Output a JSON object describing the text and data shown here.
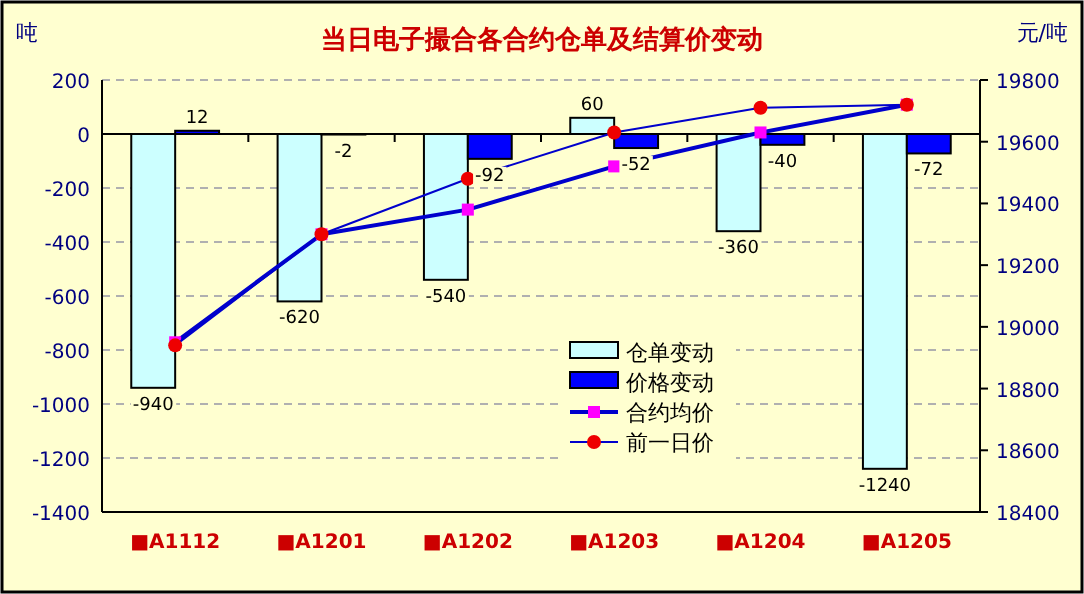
{
  "chart_data": {
    "type": "bar",
    "title": "当日电子撮合各合约仓单及结算价变动",
    "ylabel": "吨",
    "y2label": "元/吨",
    "categories": [
      "■A1112",
      "■A1201",
      "■A1202",
      "■A1203",
      "■A1204",
      "■A1205"
    ],
    "series": [
      {
        "name": "仓单变动",
        "color": "#ccffff",
        "values": [
          -940,
          -620,
          -540,
          60,
          -360,
          -1240
        ],
        "value_labels": [
          "-940",
          "-620",
          "-540",
          "60",
          "-360",
          "-1240"
        ]
      },
      {
        "name": "价格变动",
        "color": "#0000ff",
        "values": [
          12,
          -2,
          -92,
          -52,
          -40,
          -72
        ],
        "value_labels": [
          "12",
          "-2",
          "-92",
          "-52",
          "-40",
          "-72"
        ]
      },
      {
        "name": "合约均价",
        "type": "line",
        "axis": "y2",
        "color": "#0000cc",
        "marker": "square",
        "values": [
          18950,
          19300,
          19380,
          19520,
          19630,
          19720
        ]
      },
      {
        "name": "前一日价",
        "type": "line",
        "axis": "y2",
        "color": "#0000cc",
        "marker": "circle",
        "values": [
          18940,
          19300,
          19480,
          19630,
          19710,
          19720
        ]
      }
    ],
    "ylim": [
      -1400,
      200
    ],
    "yticks": [
      -1400,
      -1200,
      -1000,
      -800,
      -600,
      -400,
      -200,
      0,
      200
    ],
    "y2lim": [
      18400,
      19800
    ],
    "y2ticks": [
      18400,
      18600,
      18800,
      19000,
      19200,
      19400,
      19600,
      19800
    ],
    "grid": "y",
    "legend": "bottom"
  }
}
